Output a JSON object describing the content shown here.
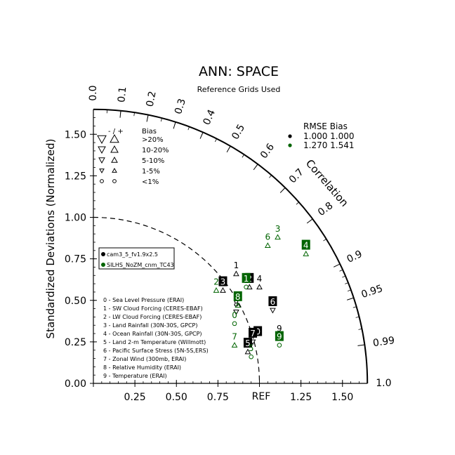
{
  "chart_data": {
    "type": "taylor",
    "title": "ANN: SPACE",
    "subtitle": "Reference Grids Used",
    "ylabel": "Standardized Deviations (Normalized)",
    "arc_label": "Correlation",
    "ref_label": "REF",
    "std_range": [
      0,
      1.65
    ],
    "grid": false,
    "x_tick_labels": [
      "0.00",
      "0.25",
      "0.50",
      "0.75",
      "1.00",
      "1.25",
      "1.50"
    ],
    "x_tick_values": [
      0,
      0.25,
      0.5,
      0.75,
      1.0,
      1.25,
      1.5
    ],
    "y_tick_labels": [
      "0.00",
      "0.25",
      "0.50",
      "0.75",
      "1.00",
      "1.25",
      "1.50"
    ],
    "y_tick_values": [
      0,
      0.25,
      0.5,
      0.75,
      1.0,
      1.25,
      1.5
    ],
    "corr_ticks": [
      {
        "label": "0.0",
        "value": 0.0
      },
      {
        "label": "0.1",
        "value": 0.1
      },
      {
        "label": "0.2",
        "value": 0.2
      },
      {
        "label": "0.3",
        "value": 0.3
      },
      {
        "label": "0.4",
        "value": 0.4
      },
      {
        "label": "0.5",
        "value": 0.5
      },
      {
        "label": "0.6",
        "value": 0.6
      },
      {
        "label": "0.7",
        "value": 0.7
      },
      {
        "label": "0.8",
        "value": 0.8
      },
      {
        "label": "0.9",
        "value": 0.9
      },
      {
        "label": "0.95",
        "value": 0.95
      },
      {
        "label": "0.99",
        "value": 0.99
      },
      {
        "label": "1.0",
        "value": 1.0
      }
    ],
    "rmse_header": "RMSE  Bias",
    "rmse_rows": [
      {
        "values": "1.000 1.000",
        "color": "#000000"
      },
      {
        "values": "1.270 1.541",
        "color": "#006400"
      }
    ],
    "bias_legend": {
      "header_signs": "-  /  +",
      "header": "Bias",
      "rows": [
        {
          "label": ">20%",
          "size": 12,
          "circle": false
        },
        {
          "label": "10-20%",
          "size": 10,
          "circle": false
        },
        {
          "label": "5-10%",
          "size": 8,
          "circle": false
        },
        {
          "label": "1-5%",
          "size": 6,
          "circle": false
        },
        {
          "label": "<1%",
          "size": 6,
          "circle": true
        }
      ]
    },
    "case_legend": [
      {
        "name": "cam3_5_fv1.9x2.5",
        "color": "#000000"
      },
      {
        "name": "SILHS_NoZM_cnm_TC43",
        "color": "#006400"
      }
    ],
    "variable_legend": [
      "0 - Sea Level Pressure (ERAI)",
      "1 - SW Cloud Forcing (CERES-EBAF)",
      "2 - LW Cloud Forcing (CERES-EBAF)",
      "3 - Land Rainfall (30N-30S, GPCP)",
      "4 - Ocean Rainfall (30N-30S, GPCP)",
      "5 - Land 2-m Temperature (Willmott)",
      "6 - Pacific Surface Stress (5N-5S,ERS)",
      "7 - Zonal Wind (300mb, ERAI)",
      "8 - Relative Humidity (ERAI)",
      "9 - Temperature (ERAI)"
    ],
    "series": [
      {
        "name": "cam3_5_fv1.9x2.5",
        "color": "#000000",
        "points": [
          {
            "id": "0",
            "x": 0.99,
            "y": 0.26,
            "marker": "none"
          },
          {
            "id": "1",
            "x": 0.86,
            "y": 0.66,
            "marker": "up"
          },
          {
            "id": "2",
            "x": 0.94,
            "y": 0.58,
            "marker": "up"
          },
          {
            "id": "3",
            "x": 0.78,
            "y": 0.56,
            "marker": "up"
          },
          {
            "id": "4",
            "x": 1.0,
            "y": 0.58,
            "marker": "up"
          },
          {
            "id": "5",
            "x": 0.93,
            "y": 0.19,
            "marker": "up"
          },
          {
            "id": "6",
            "x": 1.08,
            "y": 0.44,
            "marker": "down"
          },
          {
            "id": "7",
            "x": 0.96,
            "y": 0.25,
            "marker": "down"
          },
          {
            "id": "8",
            "x": 0.86,
            "y": 0.43,
            "marker": "down"
          },
          {
            "id": "9",
            "x": 1.12,
            "y": 0.28,
            "marker": "up"
          }
        ]
      },
      {
        "name": "SILHS_NoZM_cnm_TC43",
        "color": "#006400",
        "points": [
          {
            "id": "0",
            "x": 0.85,
            "y": 0.36,
            "marker": "circle"
          },
          {
            "id": "1",
            "x": 0.92,
            "y": 0.58,
            "marker": "circle"
          },
          {
            "id": "2",
            "x": 0.74,
            "y": 0.56,
            "marker": "up"
          },
          {
            "id": "3",
            "x": 1.11,
            "y": 0.88,
            "marker": "up"
          },
          {
            "id": "4",
            "x": 1.28,
            "y": 0.78,
            "marker": "up"
          },
          {
            "id": "5",
            "x": 0.95,
            "y": 0.16,
            "marker": "circle"
          },
          {
            "id": "6",
            "x": 1.05,
            "y": 0.83,
            "marker": "up"
          },
          {
            "id": "7",
            "x": 0.85,
            "y": 0.23,
            "marker": "up"
          },
          {
            "id": "8",
            "x": 0.87,
            "y": 0.47,
            "marker": "up"
          },
          {
            "id": "9",
            "x": 1.12,
            "y": 0.23,
            "marker": "circle"
          }
        ]
      }
    ]
  }
}
